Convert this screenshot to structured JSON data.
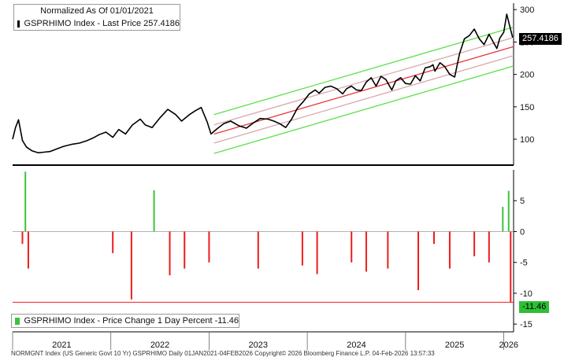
{
  "header": {
    "title": "Normalized As Of 01/01/2021",
    "price_legend": "GSPRHIMO Index - Last Price 257.4186",
    "change_legend": "GSPRHIMO Index - Price Change 1 Day Percent -11.46"
  },
  "footer": "NORMGNT Index (US Generic Govt 10 Yr) GSPRHIMO Daily 01JAN2021-04FEB2026 Copyright© 2026 Bloomberg Finance L.P. 04-Feb-2026 13:57:33",
  "colors": {
    "price_line": "#000000",
    "regression": "#e8383d",
    "inner_band": "#d9a9a9",
    "outer_band": "#5ce04a",
    "gain_bar": "#3cc33c",
    "loss_bar": "#ee1c1c",
    "zero_line": "#888888"
  },
  "chart_data": [
    {
      "type": "line",
      "name": "price",
      "title": "Normalized As Of 01/01/2021",
      "legend": "GSPRHIMO Index - Last Price 257.4186",
      "last_value": 257.4186,
      "last_value_label": "257.4186",
      "ylim": [
        60,
        310
      ],
      "yticks": [
        100,
        150,
        200,
        250,
        300
      ],
      "ytick_labels": [
        "100",
        "150",
        "200",
        "250",
        "300"
      ],
      "xlim": [
        2021.0,
        2026.1
      ],
      "x": [
        2021.0,
        2021.03,
        2021.06,
        2021.1,
        2021.14,
        2021.2,
        2021.26,
        2021.32,
        2021.38,
        2021.45,
        2021.52,
        2021.6,
        2021.68,
        2021.76,
        2021.82,
        2021.88,
        2021.95,
        2022.02,
        2022.08,
        2022.15,
        2022.22,
        2022.3,
        2022.35,
        2022.42,
        2022.5,
        2022.58,
        2022.66,
        2022.72,
        2022.8,
        2022.86,
        2022.92,
        2022.98,
        2023.02,
        2023.08,
        2023.15,
        2023.22,
        2023.3,
        2023.38,
        2023.45,
        2023.52,
        2023.6,
        2023.66,
        2023.72,
        2023.78,
        2023.84,
        2023.9,
        2023.96,
        2024.02,
        2024.08,
        2024.12,
        2024.18,
        2024.24,
        2024.3,
        2024.36,
        2024.4,
        2024.45,
        2024.5,
        2024.55,
        2024.6,
        2024.65,
        2024.7,
        2024.75,
        2024.8,
        2024.86,
        2024.9,
        2024.95,
        2025.0,
        2025.05,
        2025.1,
        2025.15,
        2025.2,
        2025.25,
        2025.28,
        2025.3,
        2025.35,
        2025.4,
        2025.45,
        2025.5,
        2025.55,
        2025.6,
        2025.65,
        2025.7,
        2025.75,
        2025.8,
        2025.85,
        2025.9,
        2025.93,
        2025.96,
        2026.0,
        2026.03,
        2026.06,
        2026.09
      ],
      "y": [
        100,
        118,
        130,
        98,
        88,
        82,
        79,
        80,
        81,
        85,
        89,
        92,
        94,
        98,
        102,
        107,
        111,
        103,
        115,
        108,
        122,
        131,
        122,
        118,
        133,
        146,
        138,
        128,
        138,
        144,
        149,
        127,
        108,
        116,
        124,
        128,
        121,
        117,
        125,
        132,
        131,
        128,
        124,
        118,
        131,
        148,
        158,
        170,
        176,
        171,
        180,
        182,
        178,
        170,
        178,
        182,
        176,
        175,
        188,
        195,
        182,
        197,
        192,
        176,
        190,
        195,
        186,
        185,
        198,
        190,
        210,
        212,
        215,
        205,
        218,
        212,
        200,
        196,
        232,
        255,
        260,
        270,
        255,
        246,
        262,
        248,
        240,
        256,
        265,
        293,
        275,
        257
      ]
    },
    {
      "type": "line",
      "name": "regression channel",
      "xlim": [
        2023.05,
        2026.1
      ],
      "center_start": 108,
      "center_end": 243,
      "inner_offset": 14,
      "outer_offset": 30
    },
    {
      "type": "bar",
      "name": "daily change",
      "legend": "GSPRHIMO Index - Price Change 1 Day Percent -11.46",
      "last_value": -11.46,
      "last_value_label": "-11.46",
      "ylim": [
        -16,
        10
      ],
      "yticks": [
        5,
        0,
        -5,
        -10,
        -15
      ],
      "ytick_labels": [
        "5",
        "0",
        "-5",
        "-10",
        "-15"
      ],
      "xlim": [
        2021.0,
        2026.1
      ],
      "x": [
        2021.1,
        2021.13,
        2021.16,
        2022.02,
        2022.21,
        2022.44,
        2022.6,
        2022.75,
        2023.0,
        2023.5,
        2023.95,
        2024.1,
        2024.45,
        2024.6,
        2024.82,
        2025.13,
        2025.29,
        2025.45,
        2025.7,
        2025.85,
        2025.99,
        2026.05,
        2026.07
      ],
      "values": [
        -2,
        9.7,
        -6,
        -3.5,
        -11,
        6.7,
        -7.1,
        -6,
        -5,
        -6,
        -5.5,
        -6.9,
        -5,
        -6.5,
        -6,
        -9.5,
        -2,
        -6,
        -4,
        -5,
        4,
        6.6,
        -11.46
      ]
    },
    {
      "type": "line",
      "name": "year axis",
      "x_tick_labels": [
        "2021",
        "2022",
        "2023",
        "2024",
        "2025",
        "2026"
      ]
    }
  ]
}
